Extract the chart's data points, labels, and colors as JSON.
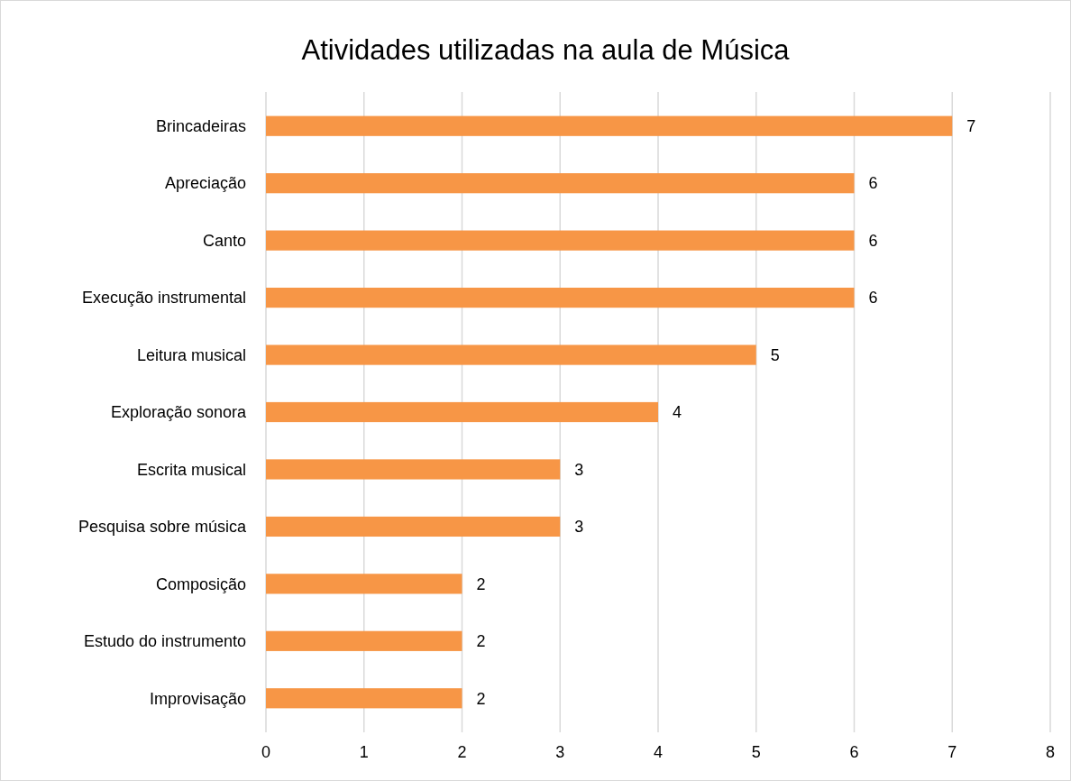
{
  "chart_data": {
    "type": "bar",
    "orientation": "horizontal",
    "title": "Atividades utilizadas na aula de Música",
    "categories": [
      "Brincadeiras",
      "Apreciação",
      "Canto",
      "Execução instrumental",
      "Leitura musical",
      "Exploração sonora",
      "Escrita musical",
      "Pesquisa sobre música",
      "Composição",
      "Estudo do instrumento",
      "Improvisação"
    ],
    "values": [
      7,
      6,
      6,
      6,
      5,
      4,
      3,
      3,
      2,
      2,
      2
    ],
    "color": "#f79646",
    "xlim": [
      0,
      8
    ],
    "xticks": [
      0,
      1,
      2,
      3,
      4,
      5,
      6,
      7,
      8
    ],
    "grid": "x",
    "data_labels": true
  }
}
